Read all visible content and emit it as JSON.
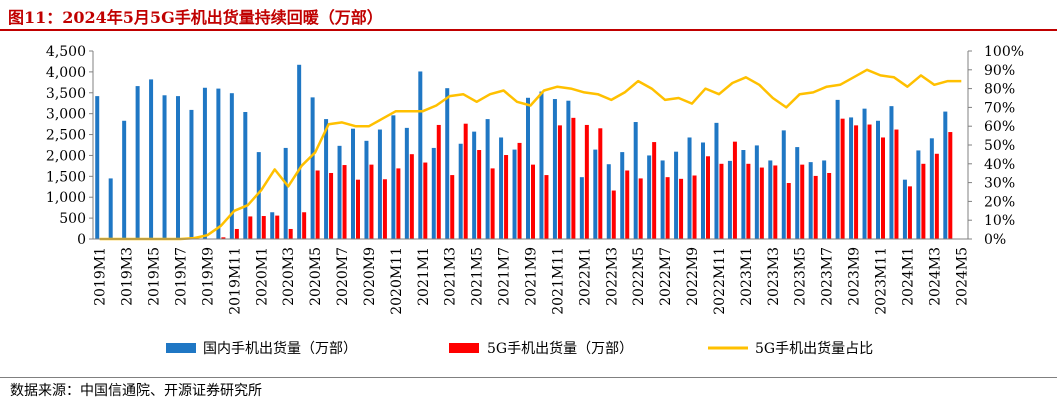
{
  "header": {
    "title": "图11：2024年5月5G手机出货量持续回暖（万部）"
  },
  "footer": {
    "source": "数据来源：中国信通院、开源证券研究所"
  },
  "colors": {
    "domestic": "#1f77c4",
    "fiveg": "#ff0000",
    "ratio": "#ffc000",
    "title": "#c00000"
  },
  "chart_data": {
    "type": "bar",
    "title": "图11：2024年5月5G手机出货量持续回暖（万部）",
    "categories": [
      "2019M1",
      "2019M2",
      "2019M3",
      "2019M4",
      "2019M5",
      "2019M6",
      "2019M7",
      "2019M8",
      "2019M9",
      "2019M10",
      "2019M11",
      "2019M12",
      "2020M1",
      "2020M2",
      "2020M3",
      "2020M4",
      "2020M5",
      "2020M6",
      "2020M7",
      "2020M8",
      "2020M9",
      "2020M10",
      "2020M11",
      "2020M12",
      "2021M1",
      "2021M2",
      "2021M3",
      "2021M4",
      "2021M5",
      "2021M6",
      "2021M7",
      "2021M8",
      "2021M9",
      "2021M10",
      "2021M11",
      "2021M12",
      "2022M1",
      "2022M2",
      "2022M3",
      "2022M4",
      "2022M5",
      "2022M6",
      "2022M7",
      "2022M8",
      "2022M9",
      "2022M10",
      "2022M11",
      "2022M12",
      "2023M1",
      "2023M2",
      "2023M3",
      "2023M4",
      "2023M5",
      "2023M6",
      "2023M7",
      "2023M8",
      "2023M9",
      "2023M10",
      "2023M11",
      "2023M12",
      "2024M1",
      "2024M2",
      "2024M3",
      "2024M4",
      "2024M5"
    ],
    "x_tick_labels": [
      "2019M1",
      "2019M3",
      "2019M5",
      "2019M7",
      "2019M9",
      "2019M11",
      "2020M1",
      "2020M3",
      "2020M5",
      "2020M7",
      "2020M9",
      "2020M11",
      "2021M1",
      "2021M3",
      "2021M5",
      "2021M7",
      "2021M9",
      "2021M11",
      "2022M1",
      "2022M3",
      "2022M5",
      "2022M7",
      "2022M9",
      "2022M11",
      "2023M1",
      "2023M3",
      "2023M5",
      "2023M7",
      "2023M9",
      "2023M11",
      "2024M1",
      "2024M3",
      "2024M5"
    ],
    "series": [
      {
        "name": "国内手机出货量（万部）",
        "axis": "left",
        "type": "bar",
        "values": [
          3420,
          1450,
          2830,
          3660,
          3820,
          3440,
          3420,
          3090,
          3620,
          3600,
          3490,
          3040,
          2080,
          640,
          2180,
          4170,
          3390,
          2870,
          2230,
          2640,
          2350,
          2620,
          2960,
          2660,
          4010,
          2180,
          3610,
          2280,
          2570,
          2870,
          2430,
          2140,
          3380,
          3530,
          3350,
          3310,
          1480,
          2140,
          1790,
          2080,
          2800,
          2000,
          1880,
          2090,
          2430,
          2310,
          2780,
          1870,
          2130,
          2240,
          1880,
          2600,
          2200,
          1840,
          1880,
          3330,
          2910,
          3120,
          2830,
          3180,
          1420,
          2120,
          2410,
          3050,
          0
        ]
      },
      {
        "name": "5G手机出货量（万部）",
        "axis": "left",
        "type": "bar",
        "values": [
          0,
          0,
          0,
          0,
          0,
          0,
          0,
          0,
          10,
          40,
          240,
          540,
          550,
          560,
          240,
          640,
          1640,
          1580,
          1770,
          1420,
          1780,
          1430,
          1690,
          2030,
          1830,
          2730,
          1530,
          2760,
          2130,
          1690,
          2010,
          2300,
          1780,
          1530,
          2720,
          2900,
          2730,
          2650,
          1160,
          1640,
          1450,
          2320,
          1480,
          1440,
          1520,
          1980,
          1800,
          2330,
          1800,
          1710,
          1760,
          1340,
          1780,
          1510,
          1580,
          2880,
          2720,
          2740,
          2430,
          2620,
          1260,
          1800,
          2040,
          2560,
          0
        ]
      },
      {
        "name": "5G手机出货量占比",
        "axis": "right",
        "type": "line",
        "values": [
          0,
          0,
          0,
          0,
          0,
          0,
          0,
          0.5,
          2,
          7,
          15,
          18,
          26,
          37,
          28,
          39,
          46,
          61,
          62,
          60,
          60,
          64,
          68,
          68,
          68,
          71,
          76,
          77,
          73,
          77,
          79,
          73,
          71,
          79,
          81,
          80,
          78,
          77,
          74,
          78,
          84,
          80,
          74,
          75,
          72,
          80,
          77,
          83,
          86,
          82,
          75,
          70,
          77,
          78,
          81,
          82,
          86,
          90,
          87,
          86,
          81,
          87,
          82,
          84,
          84
        ]
      }
    ],
    "y_left": {
      "min": 0,
      "max": 4500,
      "ticks": [
        "0",
        "500",
        "1,000",
        "1,500",
        "2,000",
        "2,500",
        "3,000",
        "3,500",
        "4,000",
        "4,500"
      ]
    },
    "y_right": {
      "min": 0,
      "max": 100,
      "ticks": [
        "0%",
        "10%",
        "20%",
        "30%",
        "40%",
        "50%",
        "60%",
        "70%",
        "80%",
        "90%",
        "100%"
      ]
    },
    "legend_position": "bottom",
    "grid": false
  }
}
